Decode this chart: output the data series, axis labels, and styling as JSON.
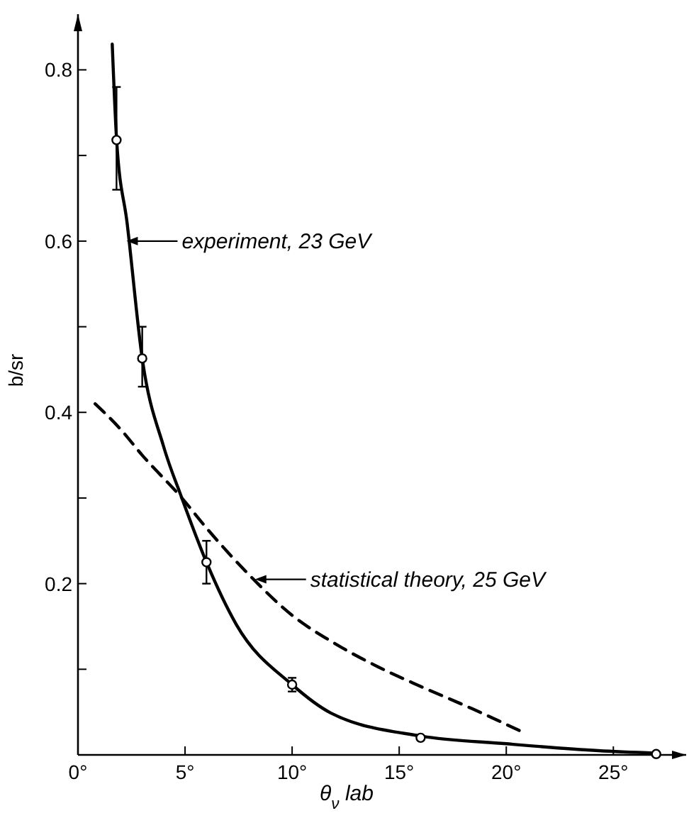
{
  "chart_data": {
    "type": "line",
    "xlabel": "θ$_{ν}$ lab",
    "ylabel": "b/sr",
    "xlim": [
      0,
      28.4
    ],
    "ylim": [
      0,
      0.865
    ],
    "xticks": [
      {
        "value": 0,
        "label": "0°"
      },
      {
        "value": 5,
        "label": "5°"
      },
      {
        "value": 10,
        "label": "10°"
      },
      {
        "value": 15,
        "label": "15°"
      },
      {
        "value": 20,
        "label": "20°"
      },
      {
        "value": 25,
        "label": "25°"
      }
    ],
    "yticks": [
      {
        "value": 0.1,
        "label": null
      },
      {
        "value": 0.2,
        "label": "0.2"
      },
      {
        "value": 0.3,
        "label": null
      },
      {
        "value": 0.4,
        "label": "0.4"
      },
      {
        "value": 0.5,
        "label": null
      },
      {
        "value": 0.6,
        "label": "0.6"
      },
      {
        "value": 0.7,
        "label": null
      },
      {
        "value": 0.8,
        "label": "0.8"
      }
    ],
    "grid": false,
    "series": [
      {
        "color": "#000000",
        "line_style": "solid",
        "x": [
          1.6,
          1.8,
          2.3,
          3,
          4,
          4.85,
          6,
          7.4,
          10,
          11.8,
          16,
          20,
          24.3,
          27
        ],
        "values": [
          0.83,
          0.72,
          0.62,
          0.463,
          0.36,
          0.3,
          0.225,
          0.152,
          0.082,
          0.049,
          0.022,
          0.013,
          0.005,
          0.002
        ]
      },
      {
        "color": "#000000",
        "line_style": "dashed",
        "x": [
          0.8,
          2,
          3,
          4.85,
          6,
          8,
          10,
          12,
          14,
          16,
          18.4,
          20.9
        ],
        "values": [
          0.41,
          0.38,
          0.35,
          0.3,
          0.265,
          0.21,
          0.163,
          0.13,
          0.103,
          0.08,
          0.054,
          0.025
        ]
      },
      {
        "type": "scatter",
        "color": "#000000",
        "marker": "circle",
        "x": [
          1.8,
          3,
          6,
          10,
          16,
          27
        ],
        "values": [
          0.718,
          0.463,
          0.225,
          0.082,
          0.02,
          0.001
        ],
        "errors": [
          [
            0.66,
            0.78
          ],
          [
            0.43,
            0.5
          ],
          [
            0.2,
            0.25
          ],
          [
            0.074,
            0.09
          ],
          null,
          null
        ]
      }
    ],
    "annotations": [
      {
        "text": "experiment, 23 GeV",
        "x": 2.2,
        "y": 0.6
      },
      {
        "text": "statistical theory, 25 GeV",
        "x": 8.2,
        "y": 0.205
      }
    ]
  }
}
